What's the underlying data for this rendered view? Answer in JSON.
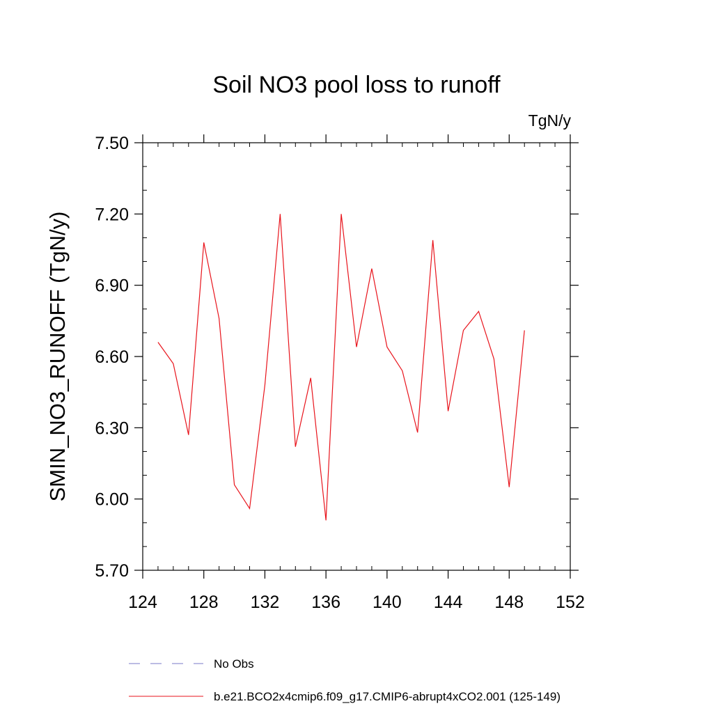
{
  "chart_data": {
    "type": "line",
    "title": "Soil NO3 pool loss to runoff",
    "units_label": "TgN/y",
    "ylabel": "SMIN_NO3_RUNOFF  (TgN/y)",
    "xlabel": "",
    "xlim": [
      124,
      152
    ],
    "ylim": [
      5.7,
      7.5
    ],
    "x_ticks": [
      "124",
      "128",
      "132",
      "136",
      "140",
      "144",
      "148",
      "152"
    ],
    "y_ticks": [
      "5.70",
      "6.00",
      "6.30",
      "6.60",
      "6.90",
      "7.20",
      "7.50"
    ],
    "grid": false,
    "series": [
      {
        "name": "b.e21.BCO2x4cmip6.f09_g17.CMIP6-abrupt4xCO2.001 (125-149)",
        "color": "#e8131b",
        "x": [
          125,
          126,
          127,
          128,
          129,
          130,
          131,
          132,
          133,
          134,
          135,
          136,
          137,
          138,
          139,
          140,
          141,
          142,
          143,
          144,
          145,
          146,
          147,
          148,
          149
        ],
        "values": [
          6.66,
          6.57,
          6.27,
          7.08,
          6.76,
          6.06,
          5.96,
          6.48,
          7.2,
          6.22,
          6.51,
          5.91,
          7.2,
          6.64,
          6.97,
          6.64,
          6.54,
          6.28,
          7.09,
          6.37,
          6.71,
          6.79,
          6.59,
          6.05,
          6.71
        ]
      }
    ],
    "legend": [
      {
        "label": "No Obs",
        "style": "dashed",
        "color": "#7a7ac8"
      },
      {
        "label": "b.e21.BCO2x4cmip6.f09_g17.CMIP6-abrupt4xCO2.001 (125-149)",
        "style": "solid",
        "color": "#e8131b"
      }
    ],
    "legend_placement": "bottom"
  }
}
